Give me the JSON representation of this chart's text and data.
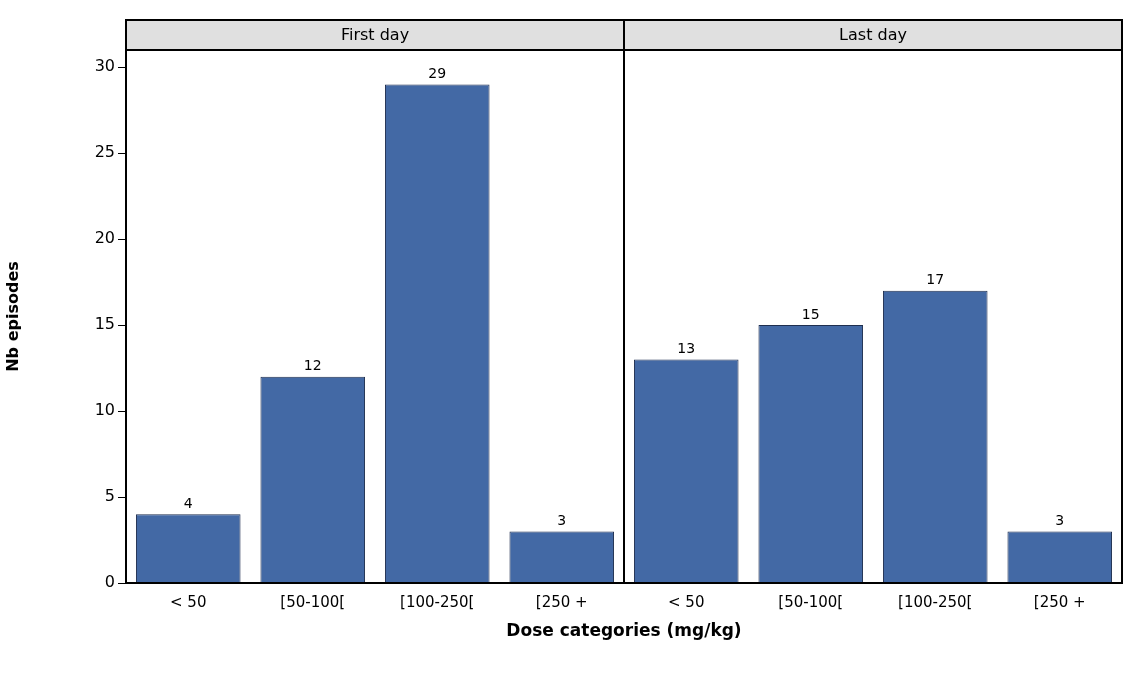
{
  "chart_data": [
    {
      "type": "bar",
      "title": "First day",
      "ylabel": "Nb episodes",
      "xlabel": "Dose categories (mg/kg)",
      "categories": [
        "< 50",
        "[50-100[",
        "[100-250[",
        "[250 +"
      ],
      "values": [
        4,
        12,
        29,
        3
      ],
      "color": "#4369a5",
      "ylim": [
        0,
        31
      ],
      "yticks": [
        0,
        5,
        10,
        15,
        20,
        25,
        30
      ],
      "data_labels": true,
      "grid": false,
      "legend": false
    },
    {
      "type": "bar",
      "title": "Last day",
      "categories": [
        "< 50",
        "[50-100[",
        "[100-250[",
        "[250 +"
      ],
      "values": [
        13,
        15,
        17,
        3
      ],
      "color": "#4369a5",
      "ylim": [
        0,
        31
      ],
      "yticks": [
        0,
        5,
        10,
        15,
        20,
        25,
        30
      ],
      "data_labels": true,
      "grid": false,
      "legend": false,
      "tick_labels": "x"
    }
  ]
}
